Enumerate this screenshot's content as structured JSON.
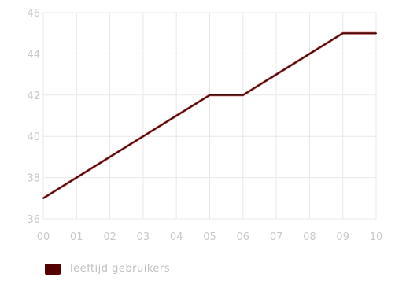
{
  "chart_data": {
    "type": "line",
    "x": [
      "00",
      "01",
      "02",
      "03",
      "04",
      "05",
      "06",
      "07",
      "08",
      "09",
      "10"
    ],
    "series": [
      {
        "name": "leeftijd gebruikers",
        "values": [
          37,
          38,
          39,
          40,
          41,
          42,
          42,
          43,
          44,
          45,
          45
        ]
      }
    ],
    "ylim": [
      36,
      46
    ],
    "yticks": [
      36,
      38,
      40,
      42,
      44,
      46
    ],
    "grid": true,
    "legend_position": "bottom-left",
    "colors": {
      "line": "#4a0a0a",
      "line_highlight": "#d01010",
      "grid": "#e8e8e8",
      "legend_swatch": "#550000",
      "tick_text": "#c8c8c8"
    }
  }
}
